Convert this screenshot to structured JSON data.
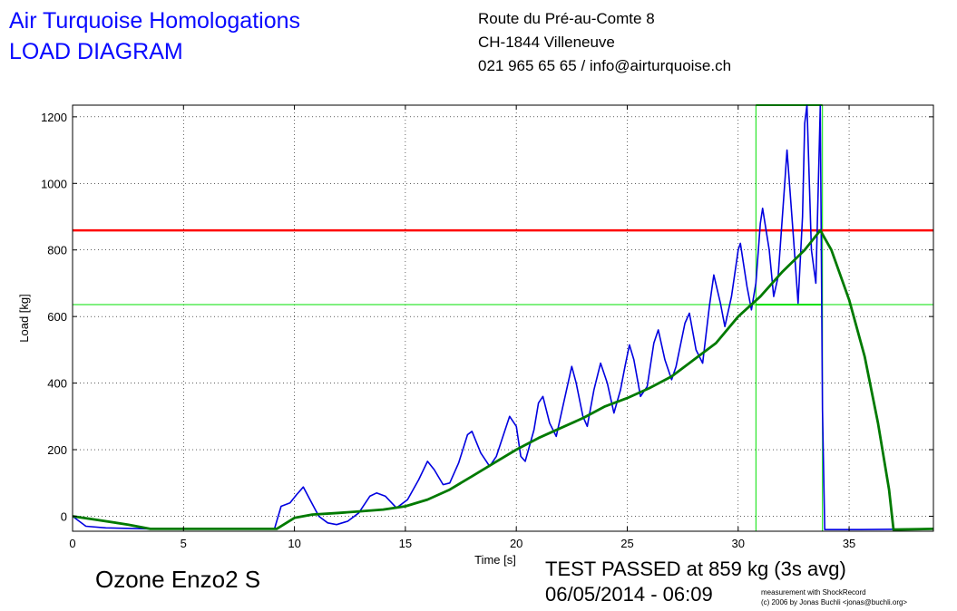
{
  "header": {
    "company": "Air Turquoise Homologations",
    "doc_type": "LOAD DIAGRAM",
    "address_line1": "Route du Pré-au-Comte 8",
    "address_line2": "CH-1844 Villeneuve",
    "contact": "021 965 65 65 / info@airturquoise.ch"
  },
  "footer": {
    "product": "Ozone Enzo2 S",
    "result": "TEST PASSED at 859 kg (3s avg)",
    "datetime": "06/05/2014 - 06:09",
    "credit_line1": "measurement with ShockRecord",
    "credit_line2": "(c) 2006 by Jonas Buchli <jonas@buchli.org>"
  },
  "chart_data": {
    "type": "line",
    "xlabel": "Time [s]",
    "ylabel": "Load [kg]",
    "xlim": [
      0,
      38.8
    ],
    "ylim": [
      -45,
      1235
    ],
    "xticks": [
      0,
      5,
      10,
      15,
      20,
      25,
      30,
      35
    ],
    "yticks": [
      0,
      200,
      400,
      600,
      800,
      1000,
      1200
    ],
    "grid": true,
    "colors": {
      "raw": "#0000e0",
      "avg": "#007a00",
      "limit": "#ff0000",
      "window": "#00e000",
      "axes": "#000000",
      "grid": "#000000"
    },
    "reference_lines": {
      "limit_load": 859,
      "window_level": 636,
      "window_start": 30.8,
      "window_end": 33.8
    },
    "series": [
      {
        "key": "raw",
        "points": [
          [
            0,
            0
          ],
          [
            0.6,
            -30
          ],
          [
            1.5,
            -35
          ],
          [
            3.5,
            -38
          ],
          [
            6,
            -38
          ],
          [
            9.1,
            -38
          ],
          [
            9.4,
            30
          ],
          [
            9.8,
            40
          ],
          [
            10.1,
            65
          ],
          [
            10.4,
            88
          ],
          [
            10.7,
            50
          ],
          [
            11.1,
            0
          ],
          [
            11.5,
            -20
          ],
          [
            11.9,
            -25
          ],
          [
            12.4,
            -15
          ],
          [
            12.9,
            10
          ],
          [
            13.4,
            60
          ],
          [
            13.7,
            70
          ],
          [
            14.1,
            60
          ],
          [
            14.6,
            25
          ],
          [
            15.1,
            50
          ],
          [
            15.6,
            110
          ],
          [
            16.0,
            165
          ],
          [
            16.3,
            140
          ],
          [
            16.7,
            95
          ],
          [
            17.0,
            100
          ],
          [
            17.4,
            160
          ],
          [
            17.8,
            245
          ],
          [
            18.0,
            255
          ],
          [
            18.4,
            190
          ],
          [
            18.8,
            150
          ],
          [
            19.1,
            180
          ],
          [
            19.5,
            260
          ],
          [
            19.7,
            300
          ],
          [
            20.0,
            270
          ],
          [
            20.2,
            180
          ],
          [
            20.4,
            165
          ],
          [
            20.8,
            260
          ],
          [
            21.0,
            340
          ],
          [
            21.2,
            360
          ],
          [
            21.5,
            280
          ],
          [
            21.8,
            240
          ],
          [
            22.1,
            330
          ],
          [
            22.3,
            390
          ],
          [
            22.5,
            450
          ],
          [
            22.7,
            400
          ],
          [
            23.0,
            300
          ],
          [
            23.2,
            270
          ],
          [
            23.5,
            380
          ],
          [
            23.8,
            460
          ],
          [
            24.1,
            400
          ],
          [
            24.4,
            310
          ],
          [
            24.7,
            380
          ],
          [
            24.9,
            450
          ],
          [
            25.1,
            515
          ],
          [
            25.3,
            470
          ],
          [
            25.6,
            360
          ],
          [
            25.9,
            390
          ],
          [
            26.2,
            520
          ],
          [
            26.4,
            560
          ],
          [
            26.7,
            470
          ],
          [
            27.0,
            410
          ],
          [
            27.2,
            450
          ],
          [
            27.6,
            580
          ],
          [
            27.8,
            610
          ],
          [
            28.1,
            500
          ],
          [
            28.4,
            460
          ],
          [
            28.7,
            630
          ],
          [
            28.9,
            725
          ],
          [
            29.2,
            640
          ],
          [
            29.4,
            570
          ],
          [
            29.7,
            660
          ],
          [
            30.0,
            800
          ],
          [
            30.1,
            820
          ],
          [
            30.4,
            690
          ],
          [
            30.6,
            620
          ],
          [
            30.8,
            700
          ],
          [
            31.0,
            880
          ],
          [
            31.1,
            925
          ],
          [
            31.4,
            800
          ],
          [
            31.6,
            660
          ],
          [
            31.8,
            720
          ],
          [
            32.1,
            1000
          ],
          [
            32.2,
            1100
          ],
          [
            32.5,
            830
          ],
          [
            32.7,
            640
          ],
          [
            32.9,
            900
          ],
          [
            33.0,
            1180
          ],
          [
            33.1,
            1235
          ],
          [
            33.3,
            800
          ],
          [
            33.5,
            700
          ],
          [
            33.7,
            1235
          ],
          [
            33.8,
            320
          ],
          [
            33.9,
            -40
          ],
          [
            35.5,
            -40
          ],
          [
            38.8,
            -38
          ]
        ]
      },
      {
        "key": "avg",
        "points": [
          [
            0,
            0
          ],
          [
            1,
            -10
          ],
          [
            2.5,
            -25
          ],
          [
            3.5,
            -38
          ],
          [
            5,
            -38
          ],
          [
            9.2,
            -38
          ],
          [
            10,
            -5
          ],
          [
            10.8,
            5
          ],
          [
            12,
            10
          ],
          [
            13,
            15
          ],
          [
            14,
            20
          ],
          [
            15,
            30
          ],
          [
            16,
            50
          ],
          [
            17,
            80
          ],
          [
            18,
            120
          ],
          [
            19,
            160
          ],
          [
            20,
            200
          ],
          [
            21,
            235
          ],
          [
            22,
            265
          ],
          [
            23,
            295
          ],
          [
            24,
            330
          ],
          [
            25,
            355
          ],
          [
            26,
            385
          ],
          [
            27,
            420
          ],
          [
            28,
            470
          ],
          [
            29,
            520
          ],
          [
            30,
            600
          ],
          [
            31,
            660
          ],
          [
            32,
            735
          ],
          [
            33,
            800
          ],
          [
            33.7,
            859
          ],
          [
            34.2,
            800
          ],
          [
            35,
            650
          ],
          [
            35.7,
            480
          ],
          [
            36.3,
            280
          ],
          [
            36.8,
            80
          ],
          [
            37.0,
            -40
          ],
          [
            38.8,
            -38
          ]
        ]
      }
    ]
  }
}
